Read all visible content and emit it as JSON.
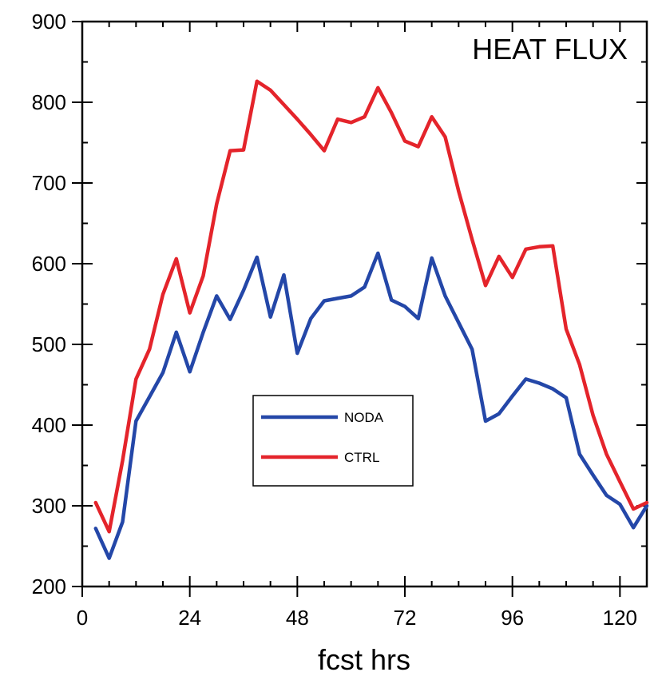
{
  "chart_data": {
    "type": "line",
    "title": "HEAT FLUX",
    "xlabel": "fcst hrs",
    "ylabel": "",
    "xlim": [
      0,
      126
    ],
    "ylim": [
      200,
      900
    ],
    "xticks": [
      0,
      24,
      48,
      72,
      96,
      120
    ],
    "yticks": [
      200,
      300,
      400,
      500,
      600,
      700,
      800,
      900
    ],
    "grid": false,
    "legend_position": "center-left",
    "series": [
      {
        "name": "NODA",
        "color": "#2447a8",
        "x": [
          3,
          6,
          9,
          12,
          15,
          18,
          21,
          24,
          27,
          30,
          33,
          36,
          39,
          42,
          45,
          48,
          51,
          54,
          57,
          60,
          63,
          66,
          69,
          72,
          75,
          78,
          81,
          84,
          87,
          90,
          93,
          96,
          99,
          102,
          105,
          108,
          111,
          114,
          117,
          120,
          123,
          126
        ],
        "values": [
          272,
          235,
          280,
          405,
          435,
          465,
          515,
          466,
          515,
          560,
          531,
          567,
          608,
          534,
          586,
          489,
          532,
          554,
          557,
          560,
          571,
          613,
          555,
          547,
          532,
          607,
          560,
          527,
          494,
          405,
          414,
          436,
          457,
          452,
          445,
          434,
          364,
          338,
          313,
          302,
          273,
          300
        ]
      },
      {
        "name": "CTRL",
        "color": "#e4242b",
        "x": [
          3,
          6,
          9,
          12,
          15,
          18,
          21,
          24,
          27,
          30,
          33,
          36,
          39,
          42,
          45,
          48,
          51,
          54,
          57,
          60,
          63,
          66,
          69,
          72,
          75,
          78,
          81,
          84,
          87,
          90,
          93,
          96,
          99,
          102,
          105,
          108,
          111,
          114,
          117,
          120,
          123,
          126
        ],
        "values": [
          304,
          268,
          356,
          457,
          494,
          562,
          606,
          539,
          585,
          674,
          740,
          741,
          826,
          815,
          797,
          779,
          760,
          740,
          779,
          775,
          782,
          818,
          787,
          752,
          745,
          782,
          757,
          690,
          630,
          573,
          609,
          583,
          618,
          621,
          622,
          519,
          475,
          412,
          364,
          330,
          296,
          304
        ]
      }
    ]
  }
}
